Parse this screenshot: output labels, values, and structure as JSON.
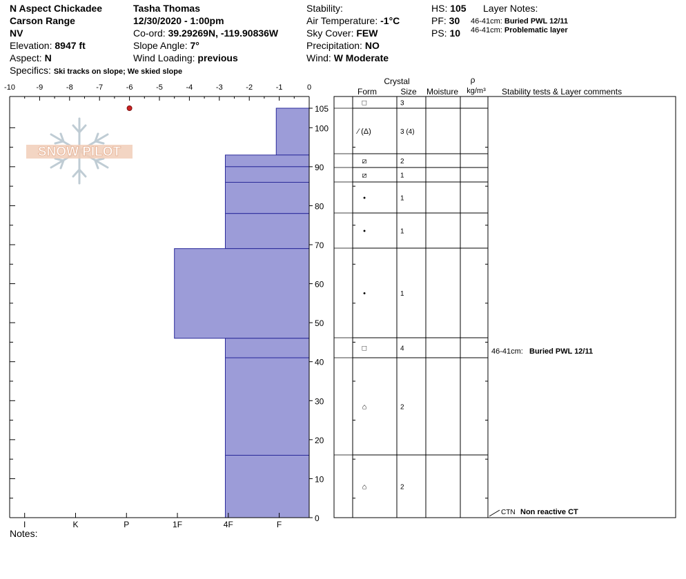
{
  "header": {
    "location": "N Aspect Chickadee",
    "range": "Carson Range",
    "state": "NV",
    "elevation_label": "Elevation:",
    "elevation_value": "8947 ft",
    "aspect_label": "Aspect:",
    "aspect_value": "N",
    "specifics_label": "Specifics:",
    "specifics_value": "Ski tracks on slope; We skied slope",
    "observer": "Tasha Thomas",
    "datetime": "12/30/2020 - 1:00pm",
    "coord_label": "Co-ord:",
    "coord_value": "39.29269N, -119.90836W",
    "slope_label": "Slope Angle:",
    "slope_value": "7°",
    "wind_loading_label": "Wind Loading:",
    "wind_loading_value": "previous",
    "stability_label": "Stability:",
    "stability_value": "",
    "air_temp_label": "Air Temperature:",
    "air_temp_value": "-1°C",
    "sky_label": "Sky Cover:",
    "sky_value": "FEW",
    "precip_label": "Precipitation:",
    "precip_value": "NO",
    "wind_label": "Wind:",
    "wind_value": "W Moderate",
    "hs_label": "HS:",
    "hs_value": "105",
    "pf_label": "PF:",
    "pf_value": "30",
    "ps_label": "PS:",
    "ps_value": "10",
    "layer_notes_label": "Layer Notes:",
    "layer_notes": [
      {
        "range": "46-41cm:",
        "text": "Buried PWL 12/11"
      },
      {
        "range": "46-41cm:",
        "text": "Problematic layer"
      }
    ]
  },
  "notes_label": "Notes:",
  "watermark": "SNOW PILOT",
  "chart_data": {
    "type": "bar",
    "orientation": "horizontal",
    "x_ticks": [
      "-10",
      "-9",
      "-8",
      "-7",
      "-6",
      "-5",
      "-4",
      "-3",
      "-2",
      "-1",
      "0"
    ],
    "xlim": [
      -10,
      0
    ],
    "hardness_ticks": [
      {
        "label": "I",
        "x": -9.5
      },
      {
        "label": "K",
        "x": -7.8
      },
      {
        "label": "P",
        "x": -6.1
      },
      {
        "label": "1F",
        "x": -4.4
      },
      {
        "label": "4F",
        "x": -2.7
      },
      {
        "label": "F",
        "x": -1.0
      }
    ],
    "y_ticks": [
      "0",
      "10",
      "20",
      "30",
      "40",
      "50",
      "60",
      "70",
      "80",
      "90",
      "100",
      "105"
    ],
    "ylim": [
      0,
      105
    ],
    "layers": [
      {
        "top": 105,
        "bottom": 93,
        "hardness": -1.1
      },
      {
        "top": 93,
        "bottom": 90,
        "hardness": -2.8
      },
      {
        "top": 90,
        "bottom": 86,
        "hardness": -2.8
      },
      {
        "top": 86,
        "bottom": 78,
        "hardness": -2.8
      },
      {
        "top": 78,
        "bottom": 69,
        "hardness": -2.8
      },
      {
        "top": 69,
        "bottom": 46,
        "hardness": -4.5
      },
      {
        "top": 46,
        "bottom": 41,
        "hardness": -2.8
      },
      {
        "top": 41,
        "bottom": 16,
        "hardness": -2.8
      },
      {
        "top": 16,
        "bottom": 0,
        "hardness": -2.8
      }
    ],
    "temperature_points": [
      {
        "temp": -6,
        "depth": 105
      }
    ],
    "bar_color": "#9c9cd8",
    "bar_edge": "#2a2a9a",
    "temp_color": "#cc2222"
  },
  "table": {
    "crystal_label": "Crystal",
    "form_label": "Form",
    "size_label": "Size",
    "moisture_label": "Moisture",
    "rho_label": "ρ",
    "density_unit": "kg/m³",
    "comments_label": "Stability tests & Layer comments",
    "rows": [
      {
        "form": "□",
        "size": "3"
      },
      {
        "form": "⁄ (Δ)",
        "size": "3 (4)"
      },
      {
        "form": "⧄",
        "size": "2"
      },
      {
        "form": "⧄",
        "size": "1"
      },
      {
        "form": "•",
        "size": "1"
      },
      {
        "form": "•",
        "size": "1"
      },
      {
        "form": "•",
        "size": "1"
      },
      {
        "form": "□",
        "size": "4"
      },
      {
        "form": "⌂",
        "size": "2"
      },
      {
        "form": "⌂",
        "size": "2"
      }
    ],
    "comment": {
      "range": "46-41cm:",
      "text": "Buried PWL 12/11"
    },
    "test": {
      "code": "CTN",
      "text": "Non reactive CT"
    }
  }
}
